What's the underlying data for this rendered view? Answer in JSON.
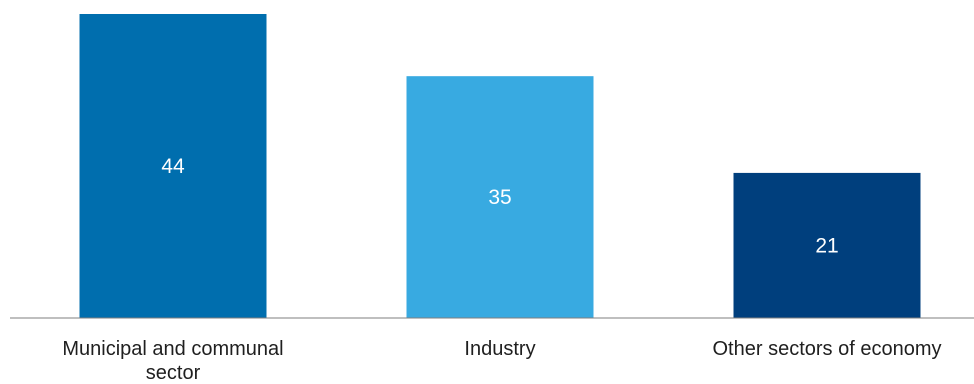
{
  "chart_data": {
    "type": "bar",
    "categories": [
      [
        "Municipal and communal",
        "sector"
      ],
      [
        "Industry"
      ],
      [
        "Other sectors of economy"
      ]
    ],
    "values": [
      44,
      35,
      21
    ],
    "colors": [
      "#006eae",
      "#38aae1",
      "#003f7d"
    ],
    "ylim": [
      0,
      44
    ],
    "grid": false,
    "legend": "none",
    "data_labels": true
  }
}
